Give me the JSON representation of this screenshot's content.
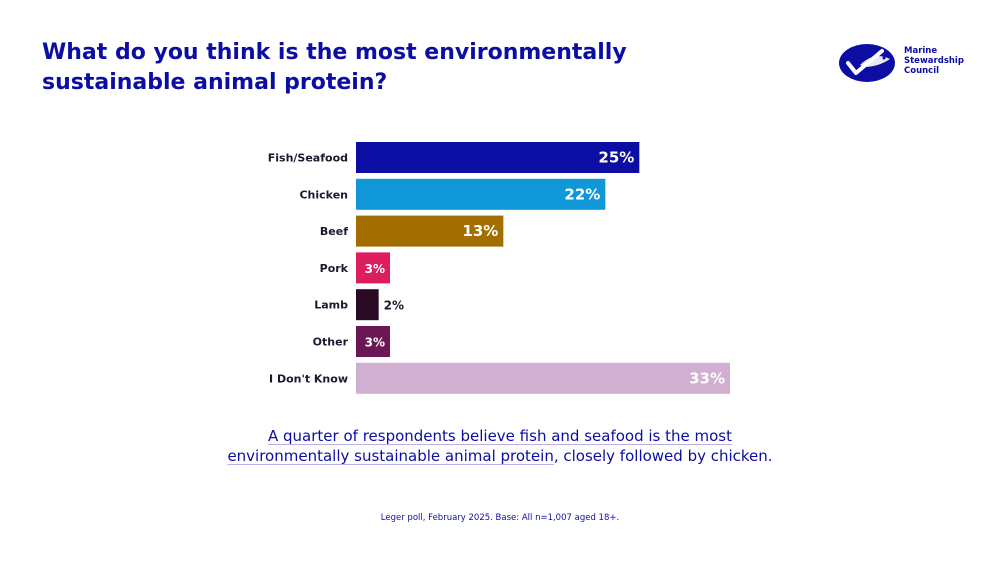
{
  "title_line1": "What do you think is the most environmentally",
  "title_line2": "sustainable animal protein?",
  "logo": {
    "line1": "Marine",
    "line2": "Stewardship",
    "line3": "Council",
    "color": "#0c0ea3"
  },
  "caption_part1": "A quarter of respondents believe fish and seafood is the most",
  "caption_part2": "environmentally sustainable animal protein",
  "caption_part3": ", closely followed by chicken.",
  "source": "Leger poll, February 2025. Base: All n=1,007 aged 18+.",
  "chart_data": {
    "type": "bar",
    "orientation": "horizontal",
    "categories": [
      "Fish/Seafood",
      "Chicken",
      "Beef",
      "Pork",
      "Lamb",
      "Other",
      "I Don't Know"
    ],
    "values": [
      25,
      22,
      13,
      3,
      2,
      3,
      33
    ],
    "value_labels": [
      "25%",
      "22%",
      "13%",
      "3%",
      "2%",
      "3%",
      "33%"
    ],
    "colors": [
      "#0c0ea3",
      "#0f97d8",
      "#a46d00",
      "#dd1d5f",
      "#2a0a24",
      "#6b1655",
      "#d0afd0"
    ],
    "xlim": [
      0,
      33
    ]
  }
}
